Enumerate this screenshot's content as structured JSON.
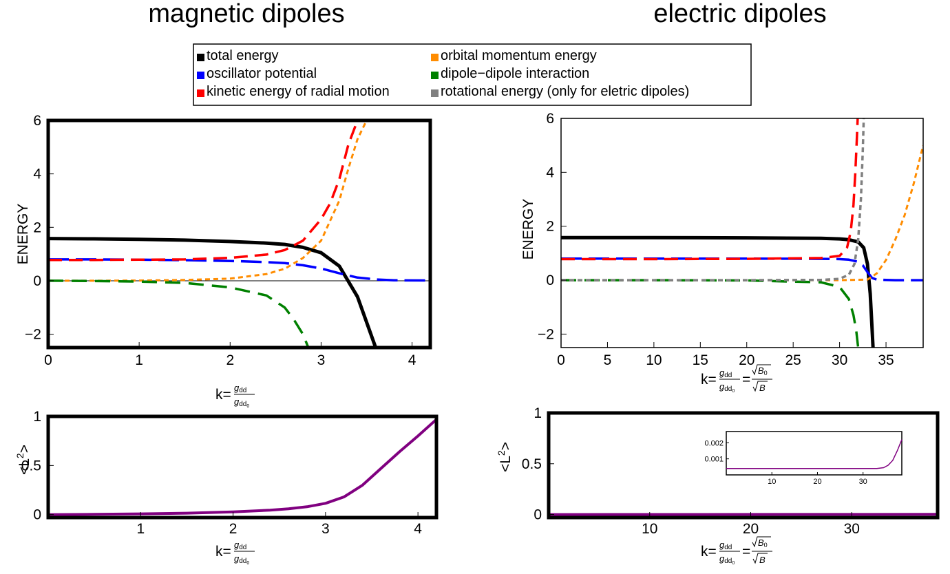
{
  "titles": {
    "left": "magnetic dipoles",
    "right": "electric dipoles"
  },
  "legend": {
    "items": [
      {
        "label": "total energy",
        "color": "#000000"
      },
      {
        "label": "oscillator potential",
        "color": "#0000ff"
      },
      {
        "label": "kinetic energy of radial motion",
        "color": "#ff0000"
      },
      {
        "label": "orbital momentum energy",
        "color": "#ff8c00"
      },
      {
        "label": "dipole−dipole interaction",
        "color": "#008000"
      },
      {
        "label": "rotational energy (only for eletric dipoles)",
        "color": "#808080"
      }
    ]
  },
  "labels": {
    "energy": "ENERGY",
    "l2": "<L²>",
    "l2_base": "<L",
    "l2_sup": "2",
    "l2_close": ">",
    "k_prefix": "k=",
    "g_dd": "g",
    "dd_sub": "dd",
    "zero_sub": "0",
    "equals": "=",
    "B0": "B",
    "B": "B"
  },
  "chart_data": [
    {
      "id": "magnetic-energy",
      "type": "line",
      "xlim": [
        0,
        4.2
      ],
      "ylim": [
        -2.5,
        6
      ],
      "xticks": [
        0,
        1,
        2,
        3,
        4
      ],
      "yticks": [
        -2,
        0,
        2,
        4,
        6
      ],
      "xticklabels": [
        "0",
        "1",
        "2",
        "3",
        "4"
      ],
      "yticklabels": [
        "−2",
        "0",
        "2",
        "4",
        "6"
      ],
      "xlabel": "k=g_dd/g_dd0",
      "ylabel": "ENERGY",
      "series": [
        {
          "name": "total energy",
          "color": "#000000",
          "dash": "",
          "width": 5,
          "x": [
            0,
            0.5,
            1.0,
            1.5,
            2.0,
            2.4,
            2.6,
            2.8,
            3.0,
            3.2,
            3.4,
            3.6
          ],
          "y": [
            1.58,
            1.57,
            1.55,
            1.52,
            1.47,
            1.41,
            1.36,
            1.25,
            1.05,
            0.55,
            -0.6,
            -2.5
          ]
        },
        {
          "name": "oscillator potential",
          "color": "#0000ff",
          "dash": "30,10",
          "width": 3.5,
          "x": [
            0,
            0.5,
            1.0,
            1.5,
            2.0,
            2.4,
            2.6,
            2.8,
            3.0,
            3.2,
            3.4,
            3.6,
            3.8,
            4.2
          ],
          "y": [
            0.8,
            0.8,
            0.79,
            0.77,
            0.74,
            0.7,
            0.66,
            0.58,
            0.46,
            0.28,
            0.12,
            0.05,
            0.02,
            0.01
          ]
        },
        {
          "name": "kinetic energy of radial motion",
          "color": "#ff0000",
          "dash": "20,10",
          "width": 3.5,
          "x": [
            0,
            0.5,
            1.0,
            1.5,
            2.0,
            2.4,
            2.6,
            2.8,
            3.0,
            3.1,
            3.2,
            3.3,
            3.4
          ],
          "y": [
            0.78,
            0.78,
            0.79,
            0.8,
            0.86,
            0.98,
            1.15,
            1.5,
            2.3,
            2.9,
            3.8,
            5.1,
            6.0
          ]
        },
        {
          "name": "orbital momentum energy",
          "color": "#ff8c00",
          "dash": "7,5",
          "width": 3,
          "x": [
            0,
            0.5,
            1.0,
            1.5,
            2.0,
            2.4,
            2.6,
            2.8,
            3.0,
            3.2,
            3.3,
            3.4,
            3.5
          ],
          "y": [
            0,
            0.0,
            0.01,
            0.03,
            0.08,
            0.25,
            0.45,
            0.85,
            1.5,
            3.0,
            4.2,
            5.3,
            6.0
          ]
        },
        {
          "name": "dipole−dipole interaction",
          "color": "#008000",
          "dash": "22,12",
          "width": 3.5,
          "x": [
            0,
            0.5,
            1.0,
            1.5,
            2.0,
            2.4,
            2.6,
            2.7,
            2.8,
            2.86
          ],
          "y": [
            0,
            -0.01,
            -0.03,
            -0.08,
            -0.25,
            -0.55,
            -1.0,
            -1.45,
            -2.0,
            -2.5
          ]
        }
      ]
    },
    {
      "id": "electric-energy",
      "type": "line",
      "xlim": [
        0,
        39
      ],
      "ylim": [
        -2.5,
        6
      ],
      "xticks": [
        0,
        5,
        10,
        15,
        20,
        25,
        30,
        35
      ],
      "yticks": [
        -2,
        0,
        2,
        4,
        6
      ],
      "xticklabels": [
        "0",
        "5",
        "10",
        "15",
        "20",
        "25",
        "30",
        "35"
      ],
      "yticklabels": [
        "−2",
        "0",
        "2",
        "4",
        "6"
      ],
      "xlabel": "k=g_dd/g_dd0=sqrt(B0)/sqrt(B)",
      "ylabel": "ENERGY",
      "series": [
        {
          "name": "total energy",
          "color": "#000000",
          "dash": "",
          "width": 5,
          "x": [
            0,
            10,
            20,
            28,
            30,
            31,
            32,
            32.6,
            33.0,
            33.3,
            33.5,
            33.6
          ],
          "y": [
            1.58,
            1.58,
            1.57,
            1.55,
            1.53,
            1.5,
            1.42,
            1.2,
            0.6,
            -0.5,
            -1.8,
            -2.5
          ]
        },
        {
          "name": "oscillator potential",
          "color": "#0000ff",
          "dash": "30,10",
          "width": 3.5,
          "x": [
            0,
            10,
            20,
            28,
            30,
            31,
            32,
            32.5,
            33,
            33.5,
            34,
            36,
            39
          ],
          "y": [
            0.8,
            0.8,
            0.8,
            0.79,
            0.78,
            0.76,
            0.68,
            0.55,
            0.3,
            0.08,
            0.02,
            0,
            0
          ]
        },
        {
          "name": "kinetic energy of radial motion",
          "color": "#ff0000",
          "dash": "20,10",
          "width": 3.5,
          "x": [
            0,
            10,
            20,
            28,
            30,
            30.8,
            31.2,
            31.5,
            31.7,
            31.85,
            31.95
          ],
          "y": [
            0.78,
            0.78,
            0.79,
            0.82,
            0.9,
            1.2,
            1.8,
            2.8,
            4.0,
            5.2,
            6.0
          ]
        },
        {
          "name": "orbital momentum energy",
          "color": "#ff8c00",
          "dash": "7,5",
          "width": 3,
          "x": [
            0,
            10,
            20,
            30,
            33,
            34,
            35,
            36,
            37,
            38,
            39
          ],
          "y": [
            0,
            0,
            0,
            0,
            0.02,
            0.25,
            0.75,
            1.5,
            2.4,
            3.6,
            5.0
          ]
        },
        {
          "name": "dipole−dipole interaction",
          "color": "#008000",
          "dash": "22,12",
          "width": 3.5,
          "x": [
            0,
            10,
            20,
            28,
            30,
            31,
            31.5,
            31.8,
            32.0
          ],
          "y": [
            0,
            0,
            -0.01,
            -0.08,
            -0.25,
            -0.7,
            -1.3,
            -1.9,
            -2.5
          ]
        },
        {
          "name": "rotational energy (only for eletric dipoles)",
          "color": "#808080",
          "dash": "7,5",
          "width": 3.5,
          "x": [
            0,
            10,
            20,
            28,
            30,
            31,
            31.6,
            32.0,
            32.3,
            32.5,
            32.6
          ],
          "y": [
            0,
            0,
            0,
            0.01,
            0.05,
            0.2,
            0.6,
            1.5,
            3.0,
            4.8,
            6.0
          ]
        }
      ]
    },
    {
      "id": "magnetic-L2",
      "type": "line",
      "xlim": [
        0,
        4.2
      ],
      "ylim": [
        -0.03,
        1.0
      ],
      "xticks": [
        1,
        2,
        3,
        4
      ],
      "yticks": [
        0,
        0.5,
        1
      ],
      "xticklabels": [
        "1",
        "2",
        "3",
        "4"
      ],
      "yticklabels": [
        "0",
        "0.5",
        "1"
      ],
      "xlabel": "k=g_dd/g_dd0",
      "ylabel": "<L²>",
      "series": [
        {
          "name": "",
          "color": "#800080",
          "dash": "",
          "width": 4,
          "x": [
            0,
            0.5,
            1.0,
            1.5,
            2.0,
            2.4,
            2.6,
            2.8,
            3.0,
            3.2,
            3.4,
            3.6,
            3.8,
            4.0,
            4.2
          ],
          "y": [
            0,
            0.003,
            0.008,
            0.015,
            0.028,
            0.045,
            0.06,
            0.08,
            0.115,
            0.18,
            0.3,
            0.47,
            0.64,
            0.8,
            0.97
          ]
        }
      ]
    },
    {
      "id": "electric-L2",
      "type": "line",
      "xlim": [
        0,
        38.5
      ],
      "ylim": [
        -0.03,
        1.0
      ],
      "xticks": [
        10,
        20,
        30
      ],
      "yticks": [
        0,
        0.5,
        1
      ],
      "xticklabels": [
        "10",
        "20",
        "30"
      ],
      "yticklabels": [
        "0",
        "0.5",
        "1"
      ],
      "xlabel": "k=g_dd/g_dd0=sqrt(B0)/sqrt(B)",
      "ylabel": "<L²>",
      "series": [
        {
          "name": "",
          "color": "#800080",
          "dash": "",
          "width": 4,
          "x": [
            0,
            38.5
          ],
          "y": [
            0,
            0.002
          ]
        }
      ],
      "inset": {
        "xlim": [
          0,
          38.5
        ],
        "ylim": [
          0.0,
          0.0027
        ],
        "xticks": [
          10,
          20,
          30
        ],
        "yticks": [
          0.001,
          0.002
        ],
        "xticklabels": [
          "10",
          "20",
          "30"
        ],
        "yticklabels": [
          "0.001",
          "0.002"
        ],
        "series": [
          {
            "name": "",
            "color": "#800080",
            "dash": "",
            "width": 1.5,
            "x": [
              0,
              10,
              20,
              30,
              33,
              34.5,
              35.5,
              36.5,
              37.5,
              38.5
            ],
            "y": [
              0.0004,
              0.0004,
              0.0004,
              0.0004,
              0.0004,
              0.00045,
              0.0006,
              0.0009,
              0.0015,
              0.0022
            ]
          }
        ]
      }
    }
  ]
}
